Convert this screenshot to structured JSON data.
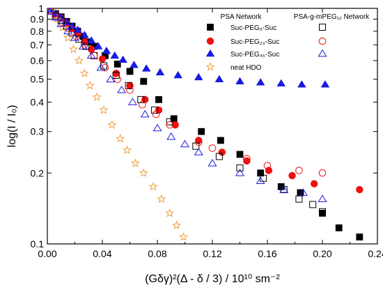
{
  "chart_data": {
    "type": "scatter",
    "xlabel": "(Gδγ)²(Δ - δ / 3) / 10¹⁰ sm⁻²",
    "ylabel": "log(I / I₀)",
    "xlim": [
      0.0,
      0.24
    ],
    "ylim": [
      0.1,
      1.0
    ],
    "y_scale": "log",
    "grid": false,
    "legend_position": "top-right",
    "x_ticks": [
      "0.00",
      "0.04",
      "0.08",
      "0.12",
      "0.16",
      "0.20",
      "0.24"
    ],
    "x_tick_values": [
      0.0,
      0.04,
      0.08,
      0.12,
      0.16,
      0.2,
      0.24
    ],
    "y_ticks": [
      "0.1",
      "0.2",
      "0.3",
      "0.4",
      "0.5",
      "0.6",
      "0.7",
      "0.8",
      "0.9",
      "1"
    ],
    "y_tick_values": [
      0.1,
      0.2,
      0.3,
      0.4,
      0.5,
      0.6,
      0.7,
      0.8,
      0.9,
      1.0
    ],
    "legend_headers": {
      "left": "PSA Network",
      "right": "PSA-g-mPEG₁₂ Network"
    },
    "series": [
      {
        "name": "Suc-PEG₉-Suc",
        "group": "PSA Network",
        "marker": "square",
        "filled": true,
        "color": "#000000",
        "points": [
          [
            0.002,
            0.985
          ],
          [
            0.006,
            0.95
          ],
          [
            0.01,
            0.92
          ],
          [
            0.014,
            0.88
          ],
          [
            0.018,
            0.84
          ],
          [
            0.022,
            0.8
          ],
          [
            0.026,
            0.76
          ],
          [
            0.03,
            0.72
          ],
          [
            0.034,
            0.69
          ],
          [
            0.042,
            0.63
          ],
          [
            0.051,
            0.58
          ],
          [
            0.06,
            0.54
          ],
          [
            0.07,
            0.49
          ],
          [
            0.081,
            0.41
          ],
          [
            0.092,
            0.34
          ],
          [
            0.112,
            0.3
          ],
          [
            0.126,
            0.275
          ],
          [
            0.14,
            0.24
          ],
          [
            0.155,
            0.2
          ],
          [
            0.17,
            0.175
          ],
          [
            0.184,
            0.165
          ],
          [
            0.2,
            0.135
          ],
          [
            0.212,
            0.117
          ],
          [
            0.227,
            0.107
          ]
        ]
      },
      {
        "name": "Suc-PEG₂₃-Suc",
        "group": "PSA Network",
        "marker": "circle",
        "filled": true,
        "color": "#ee1111",
        "points": [
          [
            0.002,
            0.985
          ],
          [
            0.006,
            0.945
          ],
          [
            0.01,
            0.91
          ],
          [
            0.014,
            0.865
          ],
          [
            0.018,
            0.82
          ],
          [
            0.022,
            0.78
          ],
          [
            0.027,
            0.72
          ],
          [
            0.032,
            0.67
          ],
          [
            0.04,
            0.61
          ],
          [
            0.05,
            0.53
          ],
          [
            0.06,
            0.47
          ],
          [
            0.071,
            0.41
          ],
          [
            0.081,
            0.37
          ],
          [
            0.093,
            0.32
          ],
          [
            0.11,
            0.275
          ],
          [
            0.127,
            0.245
          ],
          [
            0.145,
            0.225
          ],
          [
            0.161,
            0.205
          ],
          [
            0.178,
            0.195
          ],
          [
            0.194,
            0.18
          ],
          [
            0.227,
            0.17
          ]
        ]
      },
      {
        "name": "Suc-PEG₄₅-Suc",
        "group": "PSA Network",
        "marker": "triangle",
        "filled": true,
        "color": "#1a1ae0",
        "points": [
          [
            0.002,
            0.985
          ],
          [
            0.006,
            0.95
          ],
          [
            0.01,
            0.915
          ],
          [
            0.014,
            0.875
          ],
          [
            0.018,
            0.84
          ],
          [
            0.022,
            0.81
          ],
          [
            0.027,
            0.77
          ],
          [
            0.032,
            0.73
          ],
          [
            0.037,
            0.69
          ],
          [
            0.043,
            0.66
          ],
          [
            0.049,
            0.63
          ],
          [
            0.055,
            0.605
          ],
          [
            0.063,
            0.575
          ],
          [
            0.072,
            0.555
          ],
          [
            0.082,
            0.535
          ],
          [
            0.095,
            0.52
          ],
          [
            0.11,
            0.51
          ],
          [
            0.125,
            0.5
          ],
          [
            0.14,
            0.49
          ],
          [
            0.155,
            0.485
          ],
          [
            0.17,
            0.48
          ],
          [
            0.185,
            0.475
          ],
          [
            0.202,
            0.475
          ]
        ]
      },
      {
        "name": "neat HDO",
        "group": "PSA Network",
        "marker": "star",
        "filled": false,
        "color": "#f0a040",
        "points": [
          [
            0.003,
            0.975
          ],
          [
            0.007,
            0.9
          ],
          [
            0.011,
            0.83
          ],
          [
            0.015,
            0.75
          ],
          [
            0.019,
            0.67
          ],
          [
            0.023,
            0.6
          ],
          [
            0.027,
            0.53
          ],
          [
            0.031,
            0.47
          ],
          [
            0.036,
            0.42
          ],
          [
            0.041,
            0.37
          ],
          [
            0.047,
            0.32
          ],
          [
            0.053,
            0.28
          ],
          [
            0.058,
            0.25
          ],
          [
            0.064,
            0.22
          ],
          [
            0.07,
            0.2
          ],
          [
            0.077,
            0.175
          ],
          [
            0.083,
            0.155
          ],
          [
            0.089,
            0.135
          ],
          [
            0.094,
            0.12
          ],
          [
            0.099,
            0.107
          ]
        ]
      },
      {
        "name": "Suc-PEG₉-Suc",
        "group": "PSA-g-mPEG₁₂ Network",
        "marker": "square",
        "filled": false,
        "color": "#000000",
        "points": [
          [
            0.002,
            0.975
          ],
          [
            0.006,
            0.93
          ],
          [
            0.01,
            0.89
          ],
          [
            0.014,
            0.84
          ],
          [
            0.018,
            0.79
          ],
          [
            0.023,
            0.74
          ],
          [
            0.028,
            0.69
          ],
          [
            0.034,
            0.63
          ],
          [
            0.041,
            0.57
          ],
          [
            0.05,
            0.52
          ],
          [
            0.059,
            0.47
          ],
          [
            0.068,
            0.41
          ],
          [
            0.078,
            0.37
          ],
          [
            0.089,
            0.33
          ],
          [
            0.108,
            0.26
          ],
          [
            0.125,
            0.235
          ],
          [
            0.14,
            0.21
          ],
          [
            0.157,
            0.19
          ],
          [
            0.172,
            0.17
          ],
          [
            0.183,
            0.155
          ],
          [
            0.193,
            0.147
          ],
          [
            0.2,
            0.137
          ]
        ]
      },
      {
        "name": "Suc-PEG₂₃-Suc",
        "group": "PSA-g-mPEG₁₂ Network",
        "marker": "circle",
        "filled": false,
        "color": "#ee1111",
        "points": [
          [
            0.002,
            0.975
          ],
          [
            0.006,
            0.92
          ],
          [
            0.011,
            0.87
          ],
          [
            0.016,
            0.82
          ],
          [
            0.021,
            0.76
          ],
          [
            0.027,
            0.7
          ],
          [
            0.034,
            0.63
          ],
          [
            0.042,
            0.56
          ],
          [
            0.051,
            0.5
          ],
          [
            0.06,
            0.45
          ],
          [
            0.069,
            0.39
          ],
          [
            0.079,
            0.355
          ],
          [
            0.089,
            0.32
          ],
          [
            0.11,
            0.27
          ],
          [
            0.12,
            0.255
          ],
          [
            0.145,
            0.23
          ],
          [
            0.16,
            0.215
          ],
          [
            0.183,
            0.205
          ],
          [
            0.2,
            0.2
          ]
        ]
      },
      {
        "name": "Suc-PEG₄₅-Suc",
        "group": "PSA-g-mPEG₁₂ Network",
        "marker": "triangle",
        "filled": false,
        "color": "#1a1ae0",
        "points": [
          [
            0.002,
            0.97
          ],
          [
            0.006,
            0.915
          ],
          [
            0.01,
            0.86
          ],
          [
            0.015,
            0.8
          ],
          [
            0.02,
            0.75
          ],
          [
            0.026,
            0.69
          ],
          [
            0.032,
            0.63
          ],
          [
            0.039,
            0.56
          ],
          [
            0.046,
            0.5
          ],
          [
            0.054,
            0.45
          ],
          [
            0.062,
            0.4
          ],
          [
            0.071,
            0.355
          ],
          [
            0.08,
            0.31
          ],
          [
            0.09,
            0.285
          ],
          [
            0.1,
            0.265
          ],
          [
            0.11,
            0.245
          ],
          [
            0.12,
            0.22
          ],
          [
            0.14,
            0.2
          ],
          [
            0.155,
            0.185
          ],
          [
            0.172,
            0.17
          ],
          [
            0.186,
            0.165
          ],
          [
            0.2,
            0.155
          ]
        ]
      }
    ]
  }
}
